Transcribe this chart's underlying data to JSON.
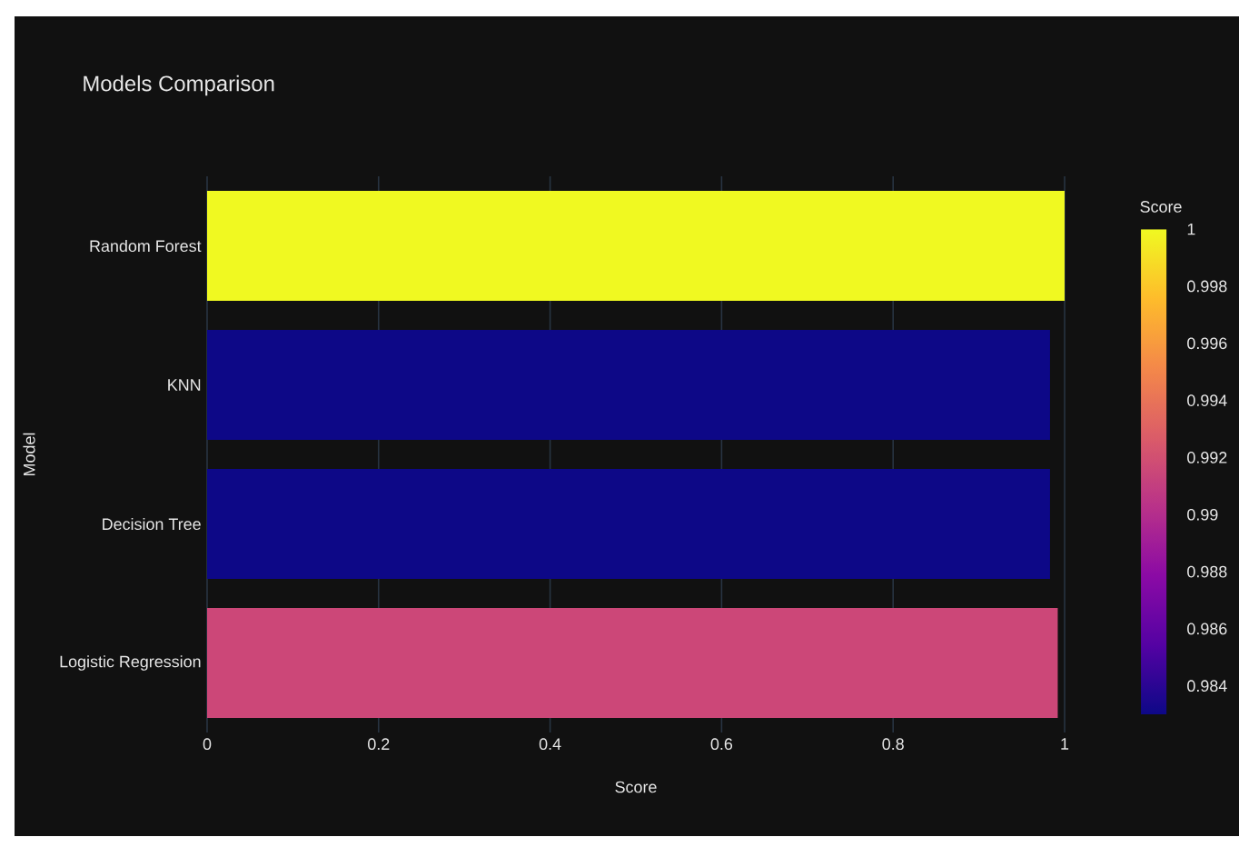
{
  "chart_data": {
    "type": "bar",
    "orientation": "horizontal",
    "title": "Models Comparison",
    "xlabel": "Score",
    "ylabel": "Model",
    "clabel": "Score",
    "categories": [
      "Random Forest",
      "KNN",
      "Decision Tree",
      "Logistic Regression"
    ],
    "values": [
      1.0,
      0.983,
      0.983,
      0.992
    ],
    "colors": [
      "#f0f921",
      "#0d0887",
      "#0d0887",
      "#cc4778"
    ],
    "xlim": [
      0,
      1
    ],
    "xticks": [
      0,
      0.2,
      0.4,
      0.6,
      0.8,
      1
    ],
    "clim": [
      0.983,
      1
    ],
    "cticks": [
      0.984,
      0.986,
      0.988,
      0.99,
      0.992,
      0.994,
      0.996,
      0.998,
      1
    ],
    "grid": "x"
  }
}
